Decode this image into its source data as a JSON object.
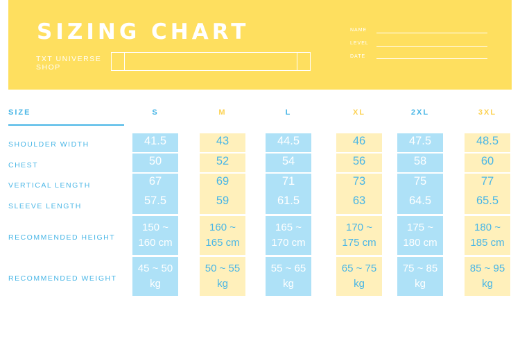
{
  "header": {
    "title": "SIZING CHART",
    "shop_name": "TXT UNIVERSE SHOP",
    "fields": [
      "NAME",
      "LEVEL",
      "DATE"
    ]
  },
  "table": {
    "size_label": "SIZE",
    "row_labels": [
      "SHOULDER WIDTH",
      "CHEST",
      "VERTICAL LENGTH",
      "SLEEVE LENGTH",
      "RECOMMENDED HEIGHT",
      "RECOMMENDED WEIGHT"
    ],
    "columns": [
      {
        "size": "S",
        "style": "blue",
        "shoulder": "41.5",
        "chest": "50",
        "vertical": "67",
        "sleeve": "57.5",
        "height": [
          "150 ~",
          "160 cm"
        ],
        "weight": [
          "45 ~ 50",
          "kg"
        ]
      },
      {
        "size": "M",
        "style": "yellow",
        "shoulder": "43",
        "chest": "52",
        "vertical": "69",
        "sleeve": "59",
        "height": [
          "160 ~",
          "165 cm"
        ],
        "weight": [
          "50 ~ 55",
          "kg"
        ]
      },
      {
        "size": "L",
        "style": "blue",
        "shoulder": "44.5",
        "chest": "54",
        "vertical": "71",
        "sleeve": "61.5",
        "height": [
          "165 ~",
          "170 cm"
        ],
        "weight": [
          "55 ~ 65",
          "kg"
        ]
      },
      {
        "size": "XL",
        "style": "yellow",
        "shoulder": "46",
        "chest": "56",
        "vertical": "73",
        "sleeve": "63",
        "height": [
          "170 ~",
          "175 cm"
        ],
        "weight": [
          "65 ~ 75",
          "kg"
        ]
      },
      {
        "size": "2XL",
        "style": "blue",
        "shoulder": "47.5",
        "chest": "58",
        "vertical": "75",
        "sleeve": "64.5",
        "height": [
          "175 ~",
          "180 cm"
        ],
        "weight": [
          "75 ~ 85",
          "kg"
        ]
      },
      {
        "size": "3XL",
        "style": "yellow",
        "shoulder": "48.5",
        "chest": "60",
        "vertical": "77",
        "sleeve": "65.5",
        "height": [
          "180 ~",
          "185 cm"
        ],
        "weight": [
          "85 ~ 95",
          "kg"
        ]
      }
    ]
  },
  "colors": {
    "banner": "#fedf5f",
    "accent_blue": "#49b6e6",
    "cell_blue": "#aee1f7",
    "cell_yellow": "#fff0bb"
  }
}
